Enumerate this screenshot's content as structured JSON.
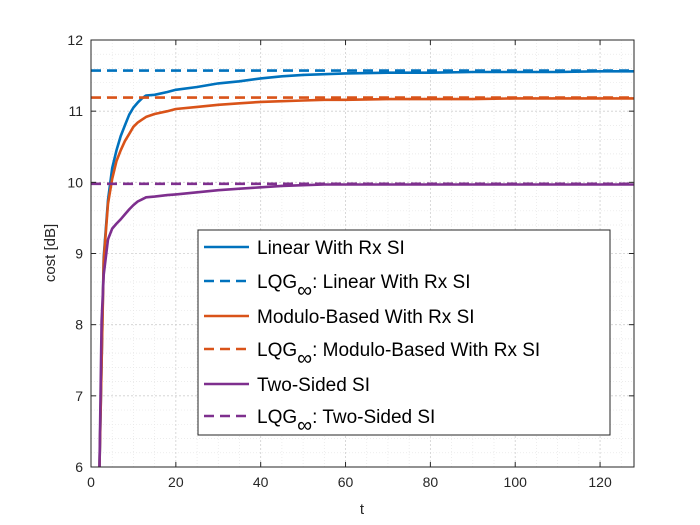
{
  "chart_data": {
    "type": "line",
    "xlabel": "t",
    "ylabel": "cost [dB]",
    "xlim": [
      0,
      128
    ],
    "ylim": [
      6,
      12
    ],
    "xticks": [
      0,
      20,
      40,
      60,
      80,
      100,
      120
    ],
    "yticks": [
      6,
      7,
      8,
      9,
      10,
      11,
      12
    ],
    "grid": "major and minor, dotted",
    "legend_position": "lower-right (inside axes)",
    "series": [
      {
        "name": "Linear With Rx SI",
        "color": "#0072BD",
        "style": "solid",
        "x": [
          2,
          3,
          4,
          5,
          6,
          7,
          8,
          9,
          10,
          11,
          12,
          13,
          15,
          18,
          20,
          25,
          30,
          35,
          40,
          45,
          50,
          55,
          60,
          70,
          80,
          90,
          100,
          110,
          120,
          128
        ],
        "y": [
          6.0,
          8.95,
          9.75,
          10.2,
          10.45,
          10.65,
          10.8,
          10.95,
          11.05,
          11.12,
          11.18,
          11.22,
          11.23,
          11.27,
          11.3,
          11.34,
          11.39,
          11.42,
          11.46,
          11.49,
          11.51,
          11.52,
          11.53,
          11.54,
          11.54,
          11.55,
          11.55,
          11.55,
          11.56,
          11.56
        ]
      },
      {
        "name": "LQG_∞: Linear With Rx SI",
        "legend_label_main": "LQG",
        "legend_label_sub": "∞",
        "legend_label_rest": ": Linear With Rx SI",
        "color": "#0072BD",
        "style": "dashed",
        "x": [
          0,
          128
        ],
        "y": [
          11.57,
          11.57
        ]
      },
      {
        "name": "Modulo-Based With Rx SI",
        "color": "#D95319",
        "style": "solid",
        "x": [
          2,
          3,
          4,
          5,
          6,
          7,
          8,
          9,
          10,
          11,
          12,
          13,
          15,
          18,
          20,
          25,
          30,
          35,
          40,
          45,
          50,
          55,
          60,
          70,
          80,
          90,
          100,
          110,
          120,
          128
        ],
        "y": [
          6.0,
          8.9,
          9.7,
          10.05,
          10.3,
          10.45,
          10.58,
          10.68,
          10.78,
          10.84,
          10.88,
          10.92,
          10.96,
          11.0,
          11.03,
          11.06,
          11.09,
          11.11,
          11.13,
          11.14,
          11.15,
          11.16,
          11.16,
          11.17,
          11.17,
          11.17,
          11.18,
          11.18,
          11.18,
          11.18
        ]
      },
      {
        "name": "LQG_∞: Modulo-Based With Rx SI",
        "legend_label_main": "LQG",
        "legend_label_sub": "∞",
        "legend_label_rest": ": Modulo-Based With Rx SI",
        "color": "#D95319",
        "style": "dashed",
        "x": [
          0,
          128
        ],
        "y": [
          11.19,
          11.19
        ]
      },
      {
        "name": "Two-Sided SI",
        "color": "#7E2F8E",
        "style": "solid",
        "x": [
          2,
          2.5,
          3,
          4,
          5,
          6,
          7,
          8,
          9,
          10,
          11,
          12,
          13,
          15,
          18,
          20,
          25,
          30,
          35,
          40,
          45,
          50,
          55,
          60,
          70,
          80,
          90,
          100,
          110,
          120,
          128
        ],
        "y": [
          6.0,
          8.05,
          8.7,
          9.2,
          9.35,
          9.42,
          9.48,
          9.55,
          9.62,
          9.68,
          9.73,
          9.76,
          9.79,
          9.8,
          9.82,
          9.83,
          9.86,
          9.89,
          9.91,
          9.93,
          9.95,
          9.96,
          9.97,
          9.97,
          9.97,
          9.97,
          9.97,
          9.97,
          9.97,
          9.97,
          9.97
        ]
      },
      {
        "name": "LQG_∞: Two-Sided SI",
        "legend_label_main": "LQG",
        "legend_label_sub": "∞",
        "legend_label_rest": ": Two-Sided SI",
        "color": "#7E2F8E",
        "style": "dashed",
        "x": [
          0,
          128
        ],
        "y": [
          9.98,
          9.98
        ]
      }
    ]
  }
}
